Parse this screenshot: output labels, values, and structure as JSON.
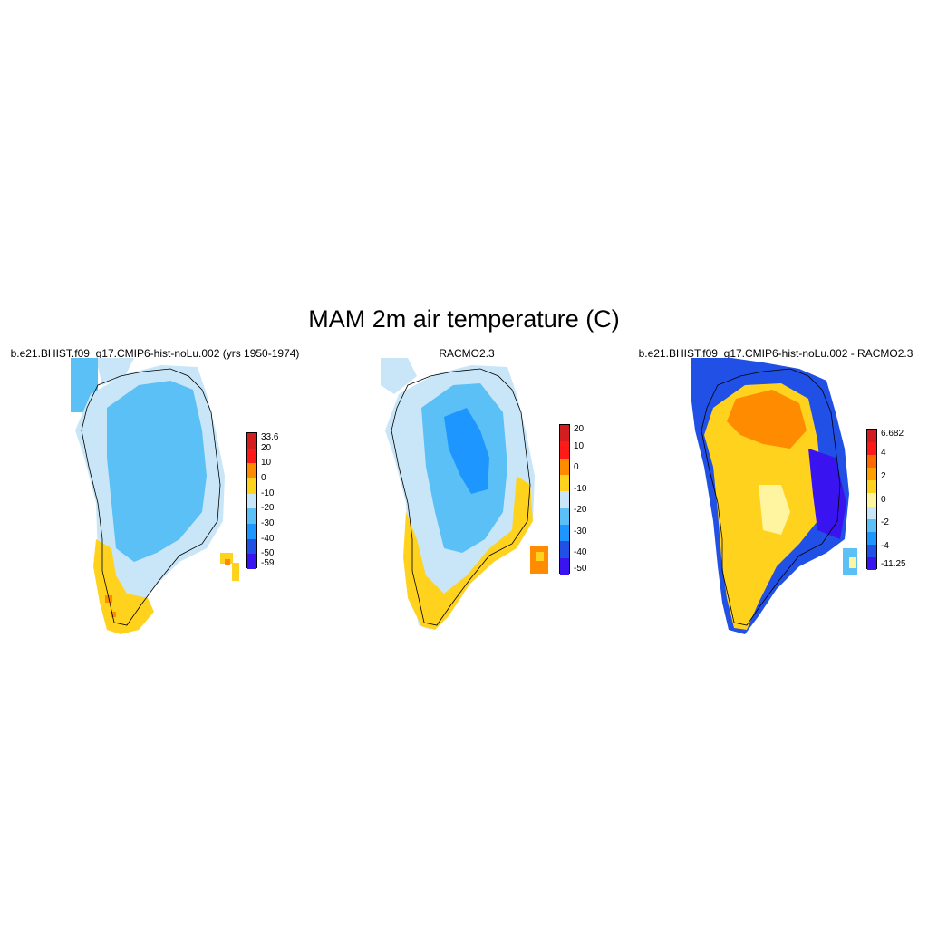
{
  "title": "MAM 2m air temperature (C)",
  "panels": [
    {
      "title": "b.e21.BHIST.f09_g17.CMIP6-hist-noLu.002 (yrs 1950-1974)",
      "colorbar": {
        "labels": [
          "33.6",
          "20",
          "10",
          "0",
          "-10",
          "-20",
          "-30",
          "-40",
          "-50",
          "-59"
        ],
        "colors": [
          "#d21e1e",
          "#ff1a1a",
          "#ff8c00",
          "#ffd21e",
          "#c8e6f8",
          "#5ac0f5",
          "#1e96ff",
          "#2050e6",
          "#3a14f0"
        ]
      }
    },
    {
      "title": "RACMO2.3",
      "colorbar": {
        "labels": [
          "20",
          "10",
          "0",
          "-10",
          "-20",
          "-30",
          "-40",
          "-50"
        ],
        "colors": [
          "#d21e1e",
          "#ff1a1a",
          "#ff8c00",
          "#ffd21e",
          "#c8e6f8",
          "#5ac0f5",
          "#1e96ff",
          "#2050e6",
          "#3a14f0"
        ]
      }
    },
    {
      "title": "b.e21.BHIST.f09_g17.CMIP6-hist-noLu.002 - RACMO2.3",
      "colorbar": {
        "labels": [
          "6.682",
          "4",
          "2",
          "0",
          "-2",
          "-4",
          "-11.25"
        ],
        "colors": [
          "#d21e1e",
          "#ff1a1a",
          "#ff6a00",
          "#ffa000",
          "#ffd21e",
          "#fff5a0",
          "#c8e6f8",
          "#5ac0f5",
          "#1e96ff",
          "#2050e6",
          "#3a14f0"
        ]
      }
    }
  ]
}
